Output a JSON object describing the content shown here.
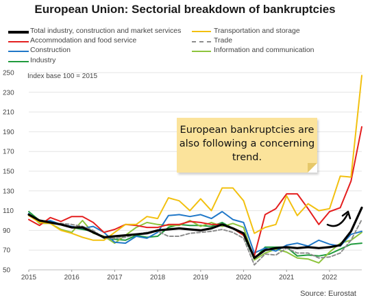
{
  "chart_data": {
    "type": "line",
    "title": "European Union: Sectorial breakdown of bankruptcies",
    "index_label": "Index base 100 = 2015",
    "source": "Source: Eurostat",
    "annotation": "European bankruptcies are also following a concerning trend.",
    "xlabel": "",
    "ylabel": "",
    "x": [
      2015.0,
      2015.25,
      2015.5,
      2015.75,
      2016.0,
      2016.25,
      2016.5,
      2016.75,
      2017.0,
      2017.25,
      2017.5,
      2017.75,
      2018.0,
      2018.25,
      2018.5,
      2018.75,
      2019.0,
      2019.25,
      2019.5,
      2019.75,
      2020.0,
      2020.25,
      2020.5,
      2020.75,
      2021.0,
      2021.25,
      2021.5,
      2021.75,
      2022.0,
      2022.25,
      2022.5,
      2022.75
    ],
    "xticks": [
      2015,
      2016,
      2017,
      2018,
      2019,
      2020,
      2021,
      2022
    ],
    "ylim": [
      50,
      250
    ],
    "yticks": [
      50,
      70,
      90,
      110,
      130,
      150,
      170,
      190,
      210,
      230,
      250
    ],
    "grid": "horizontal",
    "legend_position": "top",
    "series": [
      {
        "name": "Total industry, construction and market services",
        "color": "#000000",
        "width": 3.2,
        "dash": "",
        "values": [
          106,
          100,
          98,
          96,
          93,
          93,
          88,
          83,
          84,
          85,
          86,
          87,
          90,
          91,
          92,
          91,
          90,
          92,
          96,
          92,
          87,
          62,
          70,
          72,
          73,
          72,
          73,
          72,
          73,
          75,
          89,
          113
        ]
      },
      {
        "name": "Transportation and storage",
        "color": "#f2c00f",
        "width": 2,
        "dash": "",
        "values": [
          105,
          98,
          97,
          90,
          87,
          83,
          80,
          80,
          88,
          96,
          96,
          104,
          102,
          123,
          120,
          110,
          122,
          110,
          133,
          133,
          120,
          87,
          93,
          96,
          125,
          105,
          117,
          110,
          112,
          145,
          144,
          247
        ]
      },
      {
        "name": "Accommodation and food service",
        "color": "#e41e1e",
        "width": 2,
        "dash": "",
        "values": [
          101,
          95,
          103,
          99,
          104,
          104,
          98,
          88,
          91,
          96,
          95,
          93,
          93,
          96,
          96,
          99,
          98,
          96,
          96,
          92,
          85,
          64,
          106,
          112,
          127,
          127,
          112,
          96,
          109,
          113,
          140,
          195
        ]
      },
      {
        "name": "Trade",
        "color": "#8c8c8c",
        "width": 2,
        "dash": "5,3",
        "values": [
          105,
          99,
          97,
          97,
          96,
          94,
          90,
          82,
          82,
          83,
          86,
          88,
          89,
          84,
          84,
          87,
          88,
          89,
          91,
          88,
          82,
          55,
          66,
          65,
          72,
          67,
          67,
          62,
          63,
          67,
          80,
          101
        ]
      },
      {
        "name": "Construction",
        "color": "#1f77c8",
        "width": 2,
        "dash": "",
        "values": [
          107,
          98,
          100,
          96,
          94,
          92,
          94,
          88,
          78,
          77,
          84,
          82,
          88,
          105,
          106,
          104,
          106,
          102,
          109,
          101,
          98,
          67,
          72,
          69,
          75,
          77,
          74,
          80,
          76,
          74,
          86,
          89
        ]
      },
      {
        "name": "Information and communication",
        "color": "#8dc43c",
        "width": 2,
        "dash": "",
        "values": [
          107,
          97,
          97,
          91,
          88,
          100,
          87,
          84,
          77,
          85,
          93,
          98,
          96,
          95,
          95,
          100,
          94,
          98,
          94,
          97,
          93,
          60,
          67,
          71,
          68,
          62,
          61,
          57,
          68,
          77,
          80,
          88
        ]
      },
      {
        "name": "Industry",
        "color": "#1f9a3c",
        "width": 2,
        "dash": "",
        "values": [
          109,
          100,
          99,
          96,
          93,
          91,
          89,
          82,
          81,
          80,
          85,
          83,
          84,
          93,
          96,
          95,
          95,
          94,
          98,
          92,
          85,
          61,
          73,
          73,
          73,
          64,
          65,
          64,
          66,
          71,
          76,
          77
        ]
      }
    ]
  }
}
